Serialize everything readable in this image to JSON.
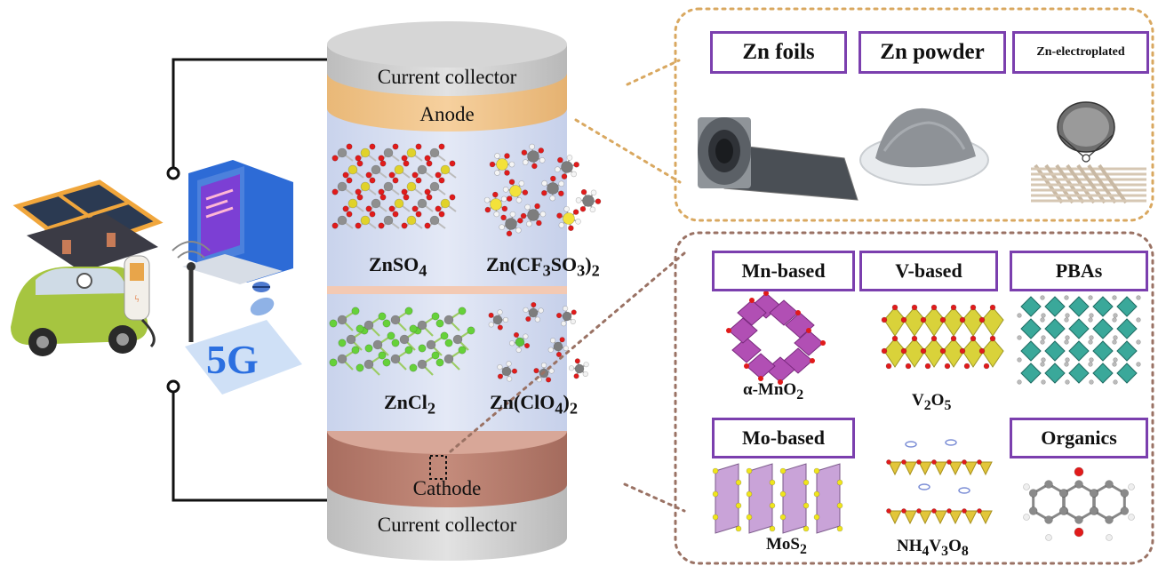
{
  "battery": {
    "top_collector": "Current collector",
    "anode": "Anode",
    "cathode": "Cathode",
    "bottom_collector": "Current collector"
  },
  "electrolytes": {
    "znso4": {
      "main": "ZnSO",
      "sub": "4"
    },
    "zncf3so3": {
      "p1": "Zn(CF",
      "s1": "3",
      "p2": "SO",
      "s2": "3",
      "p3": ")",
      "s3": "2"
    },
    "zncl2": {
      "main": "ZnCl",
      "sub": "2"
    },
    "znclo4": {
      "p1": "Zn(ClO",
      "s1": "4",
      "p2": ")",
      "s2": "2"
    }
  },
  "anode_panel": {
    "zn_foils": "Zn foils",
    "zn_powder": "Zn powder",
    "zn_electroplated": "Zn-electroplated"
  },
  "cathode_panel": {
    "mn_based": "Mn-based",
    "v_based": "V-based",
    "pbas": "PBAs",
    "mo_based": "Mo-based",
    "organics": "Organics",
    "mno2": {
      "p1": "α-MnO",
      "s1": "2"
    },
    "v2o5": {
      "p1": "V",
      "s1": "2",
      "p2": "O",
      "s2": "5"
    },
    "mos2": {
      "p1": "MoS",
      "s1": "2"
    },
    "nh4v3o8": {
      "p1": "NH",
      "s1": "4",
      "p2": "V",
      "s2": "3",
      "p3": "O",
      "s3": "8"
    }
  },
  "devices": {
    "network_label": "5G"
  },
  "colors": {
    "anode_panel_border": "#d9a860",
    "cathode_panel_border": "#9a7264",
    "label_box_border": "#7b3fae",
    "anode_band": "#f0c489",
    "cathode_band": "#b87d6d",
    "electrolyte": "#d8dff0",
    "collector": "#cfcfcf"
  }
}
